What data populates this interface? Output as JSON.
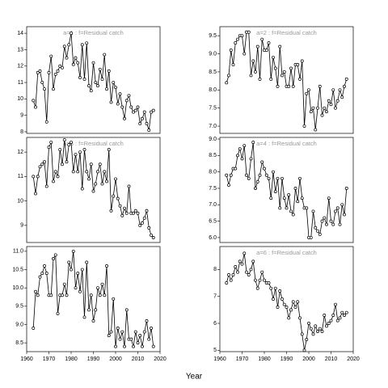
{
  "xlabel": "Year",
  "chart_data": [
    {
      "type": "line",
      "title": "a=1 : f=Residual catch",
      "color": "#000000",
      "x": [
        1963,
        1964,
        1965,
        1966,
        1967,
        1968,
        1969,
        1970,
        1971,
        1972,
        1973,
        1974,
        1975,
        1976,
        1977,
        1978,
        1979,
        1980,
        1981,
        1982,
        1983,
        1984,
        1985,
        1986,
        1987,
        1988,
        1989,
        1990,
        1991,
        1992,
        1993,
        1994,
        1995,
        1996,
        1997,
        1998,
        1999,
        2000,
        2001,
        2002,
        2003,
        2004,
        2005,
        2006,
        2007,
        2008,
        2009,
        2010,
        2011,
        2012,
        2013,
        2014,
        2015,
        2016,
        2017
      ],
      "values": [
        9.9,
        9.5,
        11.6,
        11.7,
        11.0,
        10.6,
        8.6,
        11.6,
        12.6,
        10.6,
        11.5,
        11.7,
        12.0,
        11.9,
        13.2,
        12.5,
        13.3,
        14.0,
        12.1,
        12.5,
        12.2,
        11.3,
        13.3,
        11.2,
        13.4,
        10.8,
        10.5,
        12.2,
        11.0,
        10.8,
        11.8,
        11.2,
        12.7,
        10.6,
        11.7,
        9.8,
        11.0,
        10.7,
        9.7,
        10.3,
        9.5,
        8.8,
        9.9,
        10.2,
        9.5,
        9.2,
        9.3,
        9.5,
        8.5,
        8.8,
        9.2,
        8.5,
        8.1,
        9.2,
        9.3
      ],
      "xlim": [
        1960,
        2020
      ],
      "ylim": [
        7.9,
        14.4
      ],
      "yticks": [
        8,
        9,
        10,
        11,
        12,
        13,
        14
      ]
    },
    {
      "type": "line",
      "title": "a=2 : f=Residual catch",
      "color": "#000000",
      "x": [
        1963,
        1964,
        1965,
        1966,
        1967,
        1968,
        1969,
        1970,
        1971,
        1972,
        1973,
        1974,
        1975,
        1976,
        1977,
        1978,
        1979,
        1980,
        1981,
        1982,
        1983,
        1984,
        1985,
        1986,
        1987,
        1988,
        1989,
        1990,
        1991,
        1992,
        1993,
        1994,
        1995,
        1996,
        1997,
        1998,
        1999,
        2000,
        2001,
        2002,
        2003,
        2004,
        2005,
        2006,
        2007,
        2008,
        2009,
        2010,
        2011,
        2012,
        2013,
        2014,
        2015,
        2016,
        2017
      ],
      "values": [
        8.2,
        8.4,
        9.1,
        8.7,
        9.3,
        9.4,
        9.5,
        9.5,
        9.0,
        9.6,
        9.6,
        8.4,
        8.8,
        8.5,
        9.2,
        8.3,
        9.4,
        9.1,
        9.1,
        9.3,
        8.3,
        8.9,
        8.6,
        8.1,
        9.2,
        8.4,
        8.5,
        8.1,
        8.1,
        8.6,
        8.1,
        8.7,
        8.7,
        8.3,
        8.8,
        7.0,
        7.9,
        8.0,
        7.4,
        7.5,
        6.9,
        7.5,
        8.1,
        7.3,
        7.5,
        7.4,
        7.7,
        7.6,
        8.0,
        7.5,
        7.7,
        8.0,
        7.8,
        8.1,
        8.3
      ],
      "xlim": [
        1960,
        2020
      ],
      "ylim": [
        6.8,
        9.75
      ],
      "yticks": [
        {
          "value": 7,
          "label": "7.0"
        },
        7.5,
        {
          "value": 8,
          "label": "8.0"
        },
        8.5,
        {
          "value": 9,
          "label": "9.0"
        },
        9.5
      ]
    },
    {
      "type": "line",
      "title": "a=3 : f=Residual catch",
      "color": "#000000",
      "x": [
        1963,
        1964,
        1965,
        1966,
        1967,
        1968,
        1969,
        1970,
        1971,
        1972,
        1973,
        1974,
        1975,
        1976,
        1977,
        1978,
        1979,
        1980,
        1981,
        1982,
        1983,
        1984,
        1985,
        1986,
        1987,
        1988,
        1989,
        1990,
        1991,
        1992,
        1993,
        1994,
        1995,
        1996,
        1997,
        1998,
        1999,
        2000,
        2001,
        2002,
        2003,
        2004,
        2005,
        2006,
        2007,
        2008,
        2009,
        2010,
        2011,
        2012,
        2013,
        2014,
        2015,
        2016,
        2017
      ],
      "values": [
        11.0,
        10.3,
        11.0,
        11.4,
        11.5,
        11.6,
        10.6,
        12.2,
        12.4,
        10.8,
        11.2,
        11.0,
        12.1,
        11.5,
        12.5,
        11.6,
        12.3,
        12.4,
        11.2,
        11.9,
        11.2,
        12.0,
        10.5,
        12.1,
        11.2,
        10.9,
        11.5,
        10.4,
        10.7,
        11.2,
        11.5,
        10.7,
        11.2,
        10.8,
        12.1,
        9.6,
        10.2,
        10.9,
        10.1,
        9.8,
        9.4,
        9.7,
        9.5,
        10.6,
        9.5,
        9.5,
        9.6,
        9.5,
        9.0,
        9.1,
        9.3,
        9.6,
        8.9,
        8.6,
        8.5
      ],
      "xlim": [
        1960,
        2020
      ],
      "ylim": [
        8.3,
        12.6
      ],
      "yticks": [
        9,
        10,
        11,
        12
      ]
    },
    {
      "type": "line",
      "title": "a=4 : f=Residual catch",
      "color": "#000000",
      "x": [
        1963,
        1964,
        1965,
        1966,
        1967,
        1968,
        1969,
        1970,
        1971,
        1972,
        1973,
        1974,
        1975,
        1976,
        1977,
        1978,
        1979,
        1980,
        1981,
        1982,
        1983,
        1984,
        1985,
        1986,
        1987,
        1988,
        1989,
        1990,
        1991,
        1992,
        1993,
        1994,
        1995,
        1996,
        1997,
        1998,
        1999,
        2000,
        2001,
        2002,
        2003,
        2004,
        2005,
        2006,
        2007,
        2008,
        2009,
        2010,
        2011,
        2012,
        2013,
        2014,
        2015,
        2016,
        2017
      ],
      "values": [
        7.9,
        7.6,
        7.9,
        8.1,
        8.1,
        8.5,
        8.7,
        8.4,
        8.8,
        7.9,
        7.8,
        8.4,
        8.9,
        7.5,
        7.7,
        7.9,
        8.3,
        8.1,
        7.9,
        7.8,
        7.2,
        8.0,
        7.4,
        7.8,
        6.9,
        7.8,
        7.2,
        6.9,
        7.3,
        6.8,
        6.7,
        7.5,
        7.1,
        7.8,
        7.2,
        6.9,
        6.9,
        6.0,
        6.0,
        6.8,
        6.3,
        6.2,
        6.1,
        6.5,
        6.6,
        6.4,
        7.2,
        6.5,
        6.4,
        6.8,
        6.9,
        6.4,
        7.0,
        6.7,
        7.5
      ],
      "xlim": [
        1960,
        2020
      ],
      "ylim": [
        5.85,
        9.05
      ],
      "yticks": [
        {
          "value": 6,
          "label": "6.0"
        },
        6.5,
        {
          "value": 7,
          "label": "7.0"
        },
        7.5,
        {
          "value": 8,
          "label": "8.0"
        },
        8.5,
        {
          "value": 9,
          "label": "9.0"
        }
      ]
    },
    {
      "type": "line",
      "color": "#000000",
      "x": [
        1963,
        1964,
        1965,
        1966,
        1967,
        1968,
        1969,
        1970,
        1971,
        1972,
        1973,
        1974,
        1975,
        1976,
        1977,
        1978,
        1979,
        1980,
        1981,
        1982,
        1983,
        1984,
        1985,
        1986,
        1987,
        1988,
        1989,
        1990,
        1991,
        1992,
        1993,
        1994,
        1995,
        1996,
        1997,
        1998,
        1999,
        2000,
        2001,
        2002,
        2003,
        2004,
        2005,
        2006,
        2007,
        2008,
        2009,
        2010,
        2011,
        2012,
        2013,
        2014,
        2015,
        2016,
        2017
      ],
      "values": [
        8.9,
        9.9,
        9.8,
        10.3,
        10.4,
        10.6,
        10.4,
        9.8,
        9.8,
        10.8,
        10.9,
        9.3,
        9.8,
        9.8,
        10.1,
        9.8,
        10.7,
        10.5,
        11.0,
        10.0,
        10.4,
        9.9,
        10.5,
        9.2,
        10.7,
        9.4,
        9.8,
        9.1,
        9.4,
        10.0,
        9.8,
        10.1,
        9.8,
        10.6,
        8.7,
        8.8,
        9.7,
        8.4,
        8.9,
        8.6,
        8.8,
        8.4,
        9.4,
        8.6,
        8.6,
        8.4,
        8.8,
        8.5,
        8.7,
        8.4,
        8.8,
        9.1,
        8.6,
        8.9,
        8.4
      ],
      "xlim": [
        1960,
        2020
      ],
      "xticks": [
        1960,
        1970,
        1980,
        1990,
        2000,
        2010,
        2020
      ],
      "ylim": [
        8.26,
        11.13
      ],
      "yticks": [
        8.5,
        {
          "value": 9,
          "label": "9.0"
        },
        9.5,
        {
          "value": 10,
          "label": "10.0"
        },
        10.5,
        {
          "value": 11,
          "label": "11.0"
        }
      ]
    },
    {
      "type": "line",
      "title": "a=6 : f=Residual catch",
      "color": "#000000",
      "x": [
        1963,
        1964,
        1965,
        1966,
        1967,
        1968,
        1969,
        1970,
        1971,
        1972,
        1973,
        1974,
        1975,
        1976,
        1977,
        1978,
        1979,
        1980,
        1981,
        1982,
        1983,
        1984,
        1985,
        1986,
        1987,
        1988,
        1989,
        1990,
        1991,
        1992,
        1993,
        1994,
        1995,
        1996,
        1997,
        1998,
        1999,
        2000,
        2001,
        2002,
        2003,
        2004,
        2005,
        2006,
        2007,
        2008,
        2009,
        2010,
        2011,
        2012,
        2013,
        2014,
        2015,
        2016,
        2017
      ],
      "values": [
        7.5,
        7.8,
        7.6,
        7.8,
        8.1,
        7.9,
        8.3,
        8.2,
        8.6,
        7.9,
        7.8,
        8.0,
        8.3,
        7.6,
        7.3,
        7.6,
        7.9,
        7.6,
        7.5,
        7.5,
        7.3,
        6.9,
        7.3,
        6.6,
        7.2,
        6.9,
        6.7,
        6.6,
        6.2,
        6.5,
        6.8,
        6.6,
        6.8,
        6.2,
        5.6,
        5.0,
        5.4,
        6.0,
        5.8,
        5.6,
        5.9,
        5.7,
        5.8,
        5.7,
        6.3,
        5.9,
        6.0,
        6.1,
        6.3,
        6.7,
        6.1,
        6.2,
        6.4,
        6.3,
        6.4
      ],
      "xlim": [
        1960,
        2020
      ],
      "xticks": [
        1960,
        1970,
        1980,
        1990,
        2000,
        2010,
        2020
      ],
      "ylim": [
        4.95,
        8.85
      ],
      "yticks": [
        5,
        6,
        7,
        8
      ]
    }
  ]
}
